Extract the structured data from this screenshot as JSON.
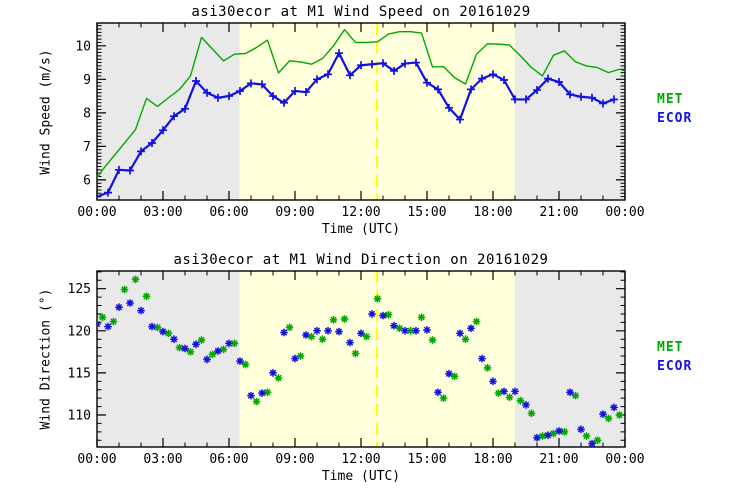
{
  "colors": {
    "met": "#00a800",
    "ecor": "#1212e0",
    "day": "#ffffdc",
    "night": "#e9e9e9",
    "noon": "#ffff00",
    "axis": "#000000",
    "background": "#ffffff"
  },
  "legend": {
    "items": [
      {
        "label": "MET",
        "series": "met"
      },
      {
        "label": "ECOR",
        "series": "ecor"
      }
    ]
  },
  "shading": {
    "night_h": [
      [
        0,
        6.48
      ],
      [
        19.0,
        24
      ]
    ],
    "day_h": [
      [
        6.48,
        19.0
      ]
    ],
    "solar_noon_h": 12.73
  },
  "chart_data": [
    {
      "type": "line",
      "title": "asi30ecor at M1 Wind Speed on 20161029",
      "ylabel": "Wind Speed (m/s)",
      "xlabel": "Time (UTC)",
      "xlim": [
        0,
        24
      ],
      "ylim": [
        5.4,
        10.68
      ],
      "yticks": [
        6,
        7,
        8,
        9,
        10
      ],
      "yminor_step": 0.1,
      "x_ticks": {
        "hours": [
          0,
          3,
          6,
          9,
          12,
          15,
          18,
          21,
          24
        ],
        "labels": [
          "00:00",
          "03:00",
          "06:00",
          "09:00",
          "12:00",
          "15:00",
          "18:00",
          "21:00",
          "00:00"
        ],
        "minor_every_h": 1
      },
      "grid": false,
      "legend_position": "right-outside",
      "series": [
        {
          "name": "MET",
          "color": "met",
          "line": true,
          "width": 1.4,
          "marker": "none",
          "x": [
            0,
            0.25,
            0.75,
            1.25,
            1.75,
            2.25,
            2.75,
            3.25,
            3.75,
            4.25,
            4.75,
            5.25,
            5.75,
            6.25,
            6.75,
            7.25,
            7.75,
            8.25,
            8.75,
            9.25,
            9.75,
            10.25,
            10.75,
            11.25,
            11.75,
            12.25,
            12.75,
            13.25,
            13.75,
            14.25,
            14.75,
            15.25,
            15.75,
            16.25,
            16.75,
            17.25,
            17.75,
            18.25,
            18.75,
            19.25,
            19.75,
            20.25,
            20.75,
            21.25,
            21.75,
            22.25,
            22.75,
            23.25,
            23.75,
            24
          ],
          "values": [
            6.05,
            6.3,
            6.7,
            7.1,
            7.5,
            8.43,
            8.19,
            8.45,
            8.7,
            9.1,
            10.25,
            9.9,
            9.55,
            9.75,
            9.77,
            9.95,
            10.17,
            9.19,
            9.55,
            9.52,
            9.45,
            9.62,
            10.0,
            10.48,
            10.1,
            10.1,
            10.12,
            10.35,
            10.42,
            10.42,
            10.38,
            9.37,
            9.38,
            9.05,
            8.86,
            9.75,
            10.06,
            10.05,
            10.02,
            9.7,
            9.35,
            9.1,
            9.72,
            9.85,
            9.52,
            9.4,
            9.35,
            9.2,
            9.3,
            9.25
          ]
        },
        {
          "name": "ECOR",
          "color": "ecor",
          "line": true,
          "width": 2.2,
          "marker": "plus",
          "x": [
            0,
            0.5,
            1,
            1.5,
            2,
            2.5,
            3,
            3.5,
            4,
            4.5,
            5,
            5.5,
            6,
            6.5,
            7,
            7.5,
            8,
            8.5,
            9,
            9.5,
            10,
            10.5,
            11,
            11.5,
            12,
            12.5,
            13,
            13.5,
            14,
            14.5,
            15,
            15.5,
            16,
            16.5,
            17,
            17.5,
            18,
            18.5,
            19,
            19.5,
            20,
            20.5,
            21,
            21.5,
            22,
            22.5,
            23,
            23.5
          ],
          "values": [
            5.5,
            5.62,
            6.3,
            6.28,
            6.85,
            7.1,
            7.48,
            7.9,
            8.12,
            8.95,
            8.6,
            8.45,
            8.5,
            8.65,
            8.88,
            8.85,
            8.5,
            8.3,
            8.65,
            8.62,
            9.0,
            9.15,
            9.78,
            9.12,
            9.42,
            9.45,
            9.48,
            9.25,
            9.47,
            9.5,
            8.9,
            8.7,
            8.15,
            7.8,
            8.7,
            9.02,
            9.15,
            8.98,
            8.4,
            8.4,
            8.68,
            9.02,
            8.92,
            8.55,
            8.48,
            8.45,
            8.28,
            8.4
          ]
        }
      ]
    },
    {
      "type": "scatter",
      "title": "asi30ecor at M1 Wind Direction on 20161029",
      "ylabel": "Wind Direction (°)",
      "xlabel": "Time (UTC)",
      "xlim": [
        0,
        24
      ],
      "ylim": [
        106.2,
        127.1
      ],
      "yticks": [
        110,
        115,
        120,
        125
      ],
      "yminor_step": 1,
      "x_ticks": {
        "hours": [
          0,
          3,
          6,
          9,
          12,
          15,
          18,
          21,
          24
        ],
        "labels": [
          "00:00",
          "03:00",
          "06:00",
          "09:00",
          "12:00",
          "15:00",
          "18:00",
          "21:00",
          "00:00"
        ],
        "minor_every_h": 1
      },
      "grid": false,
      "legend_position": "right-outside",
      "series": [
        {
          "name": "MET",
          "color": "met",
          "line": false,
          "width": 1.4,
          "marker": "asterisk",
          "x": [
            0.25,
            0.75,
            1.25,
            1.75,
            2.25,
            2.75,
            3.25,
            3.75,
            4.25,
            4.75,
            5.25,
            5.75,
            6.25,
            6.75,
            7.25,
            7.75,
            8.25,
            8.75,
            9.25,
            9.75,
            10.25,
            10.75,
            11.25,
            11.75,
            12.25,
            12.75,
            13.25,
            13.75,
            14.25,
            14.75,
            15.25,
            15.75,
            16.25,
            16.75,
            17.25,
            17.75,
            18.25,
            18.75,
            19.25,
            19.75,
            20.25,
            20.75,
            21.25,
            21.75,
            22.25,
            22.75,
            23.25,
            23.75
          ],
          "values": [
            121.6,
            121.1,
            124.9,
            126.1,
            124.1,
            120.4,
            119.7,
            118.0,
            117.5,
            118.9,
            117.2,
            117.8,
            118.5,
            116.0,
            111.6,
            112.7,
            114.4,
            120.4,
            117.0,
            119.3,
            119.0,
            121.3,
            121.4,
            117.3,
            119.3,
            123.8,
            121.9,
            120.3,
            120.0,
            121.6,
            118.9,
            112.0,
            114.6,
            119.0,
            121.1,
            115.6,
            112.6,
            112.1,
            111.7,
            110.2,
            107.5,
            107.8,
            108.0,
            112.3,
            107.5,
            107.0,
            109.6,
            110.0
          ]
        },
        {
          "name": "ECOR",
          "color": "ecor",
          "line": false,
          "width": 1.4,
          "marker": "asterisk",
          "x": [
            0,
            0.5,
            1,
            1.5,
            2,
            2.5,
            3,
            3.5,
            4,
            4.5,
            5,
            5.5,
            6,
            6.5,
            7,
            7.5,
            8,
            8.5,
            9,
            9.5,
            10,
            10.5,
            11,
            11.5,
            12,
            12.5,
            13,
            13.5,
            14,
            14.5,
            15,
            15.5,
            16,
            16.5,
            17,
            17.5,
            18,
            18.5,
            19,
            19.5,
            20,
            20.5,
            21,
            21.5,
            22,
            22.5,
            23,
            23.5
          ],
          "values": [
            120.8,
            120.5,
            122.8,
            123.3,
            122.4,
            120.5,
            119.9,
            119.0,
            117.9,
            118.4,
            116.6,
            117.6,
            118.5,
            116.4,
            112.3,
            112.6,
            115.0,
            119.8,
            116.7,
            119.5,
            120.0,
            120.0,
            119.9,
            118.6,
            119.7,
            122.0,
            121.8,
            120.6,
            120.0,
            120.0,
            120.1,
            112.7,
            114.9,
            119.7,
            120.3,
            116.7,
            114.0,
            112.8,
            112.8,
            111.2,
            107.3,
            107.6,
            108.1,
            112.7,
            108.3,
            106.6,
            110.1,
            110.9
          ]
        }
      ]
    }
  ]
}
